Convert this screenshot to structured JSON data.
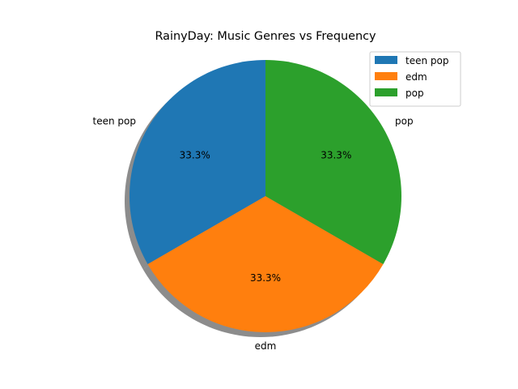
{
  "chart_data": {
    "type": "pie",
    "title": "RainyDay: Music Genres vs Frequency",
    "slices": [
      {
        "label": "teen pop",
        "value": 1,
        "percent_label": "33.3%",
        "color": "#1f77b4"
      },
      {
        "label": "edm",
        "value": 1,
        "percent_label": "33.3%",
        "color": "#ff7f0e"
      },
      {
        "label": "pop",
        "value": 1,
        "percent_label": "33.3%",
        "color": "#2ca02c"
      }
    ],
    "start_angle_deg": 90,
    "direction": "counterclockwise",
    "shadow": true,
    "legend": {
      "placement": "top-right",
      "entries": [
        "teen pop",
        "edm",
        "pop"
      ]
    }
  }
}
